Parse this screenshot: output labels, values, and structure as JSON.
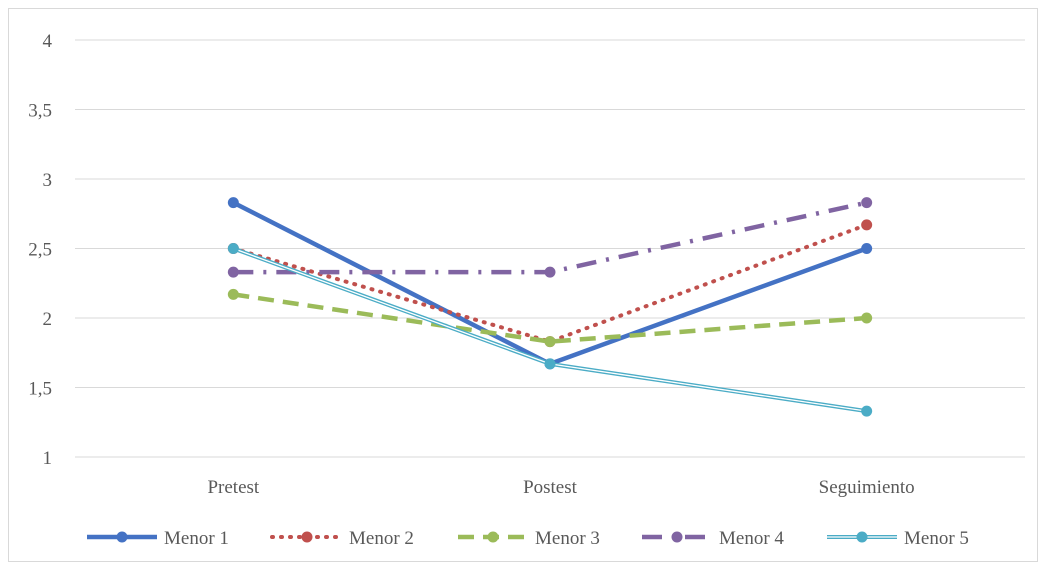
{
  "chart_data": {
    "type": "line",
    "title": "",
    "xlabel": "",
    "ylabel": "",
    "categories": [
      "Pretest",
      "Postest",
      "Seguimiento"
    ],
    "ylim": [
      1,
      4
    ],
    "yticks": [
      1,
      1.5,
      2,
      2.5,
      3,
      3.5,
      4
    ],
    "ytick_labels": [
      "1",
      "1,5",
      "2",
      "2,5",
      "3",
      "3,5",
      "4"
    ],
    "grid": true,
    "legend_position": "bottom",
    "series": [
      {
        "name": "Menor 1",
        "values": [
          2.83,
          1.67,
          2.5
        ],
        "color": "#4472c4",
        "style": "solid"
      },
      {
        "name": "Menor 2",
        "values": [
          2.5,
          1.83,
          2.67
        ],
        "color": "#c0504d",
        "style": "dotted"
      },
      {
        "name": "Menor 3",
        "values": [
          2.17,
          1.83,
          2.0
        ],
        "color": "#9bbb59",
        "style": "dashed"
      },
      {
        "name": "Menor 4",
        "values": [
          2.33,
          2.33,
          2.83
        ],
        "color": "#8064a2",
        "style": "dashdot"
      },
      {
        "name": "Menor 5",
        "values": [
          2.5,
          1.67,
          1.33
        ],
        "color": "#4bacc6",
        "style": "double"
      }
    ]
  }
}
